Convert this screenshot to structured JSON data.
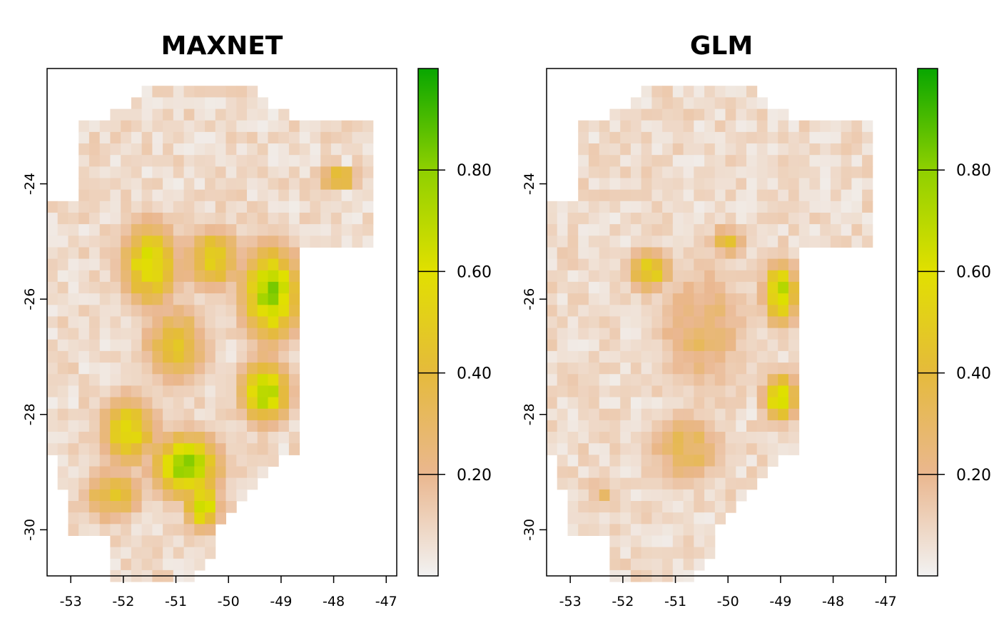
{
  "chart_data": [
    {
      "type": "heatmap",
      "title": "MAXNET",
      "xlabel": "",
      "ylabel": "",
      "xlim": [
        -53.45,
        -46.8
      ],
      "ylim": [
        -30.8,
        -26.1
      ],
      "x_ticks": [
        -53,
        -52,
        -51,
        -50,
        -49,
        -48,
        -47
      ],
      "y_ticks": [
        -24,
        -26,
        -28,
        -30
      ],
      "colorbar": {
        "range": [
          0,
          1
        ],
        "ticks": [
          0.2,
          0.4,
          0.6,
          0.8
        ],
        "tick_labels": [
          "0.20",
          "0.40",
          "0.60",
          "0.80"
        ]
      },
      "palette": [
        "#f2f2f2",
        "#eab78f",
        "#e5ba3c",
        "#e1e000",
        "#8fd000",
        "#08a600"
      ],
      "regions": [
        {
          "lon": -51.5,
          "lat": -25.4,
          "rx": 0.6,
          "ry": 0.8,
          "value": 0.62
        },
        {
          "lon": -49.2,
          "lat": -25.9,
          "rx": 0.6,
          "ry": 0.9,
          "value": 0.78
        },
        {
          "lon": -50.3,
          "lat": -25.3,
          "rx": 0.6,
          "ry": 0.6,
          "value": 0.52
        },
        {
          "lon": -49.3,
          "lat": -27.6,
          "rx": 0.5,
          "ry": 0.6,
          "value": 0.75
        },
        {
          "lon": -50.8,
          "lat": -28.9,
          "rx": 0.7,
          "ry": 0.6,
          "value": 0.78
        },
        {
          "lon": -51.9,
          "lat": -28.3,
          "rx": 0.6,
          "ry": 0.7,
          "value": 0.55
        },
        {
          "lon": -52.2,
          "lat": -29.4,
          "rx": 0.6,
          "ry": 0.5,
          "value": 0.45
        },
        {
          "lon": -50.5,
          "lat": -29.6,
          "rx": 0.35,
          "ry": 0.45,
          "value": 0.7
        },
        {
          "lon": -51.0,
          "lat": -26.8,
          "rx": 0.7,
          "ry": 0.8,
          "value": 0.42
        },
        {
          "lon": -47.9,
          "lat": -23.9,
          "rx": 0.4,
          "ry": 0.15,
          "value": 0.7
        }
      ]
    },
    {
      "type": "heatmap",
      "title": "GLM",
      "xlabel": "",
      "ylabel": "",
      "xlim": [
        -53.45,
        -46.8
      ],
      "ylim": [
        -30.8,
        -26.1
      ],
      "x_ticks": [
        -53,
        -52,
        -51,
        -50,
        -49,
        -48,
        -47
      ],
      "y_ticks": [
        -24,
        -26,
        -28,
        -30
      ],
      "colorbar": {
        "range": [
          0,
          1
        ],
        "ticks": [
          0.2,
          0.4,
          0.6,
          0.8
        ],
        "tick_labels": [
          "0.20",
          "0.40",
          "0.60",
          "0.80"
        ]
      },
      "palette": [
        "#f2f2f2",
        "#eab78f",
        "#e5ba3c",
        "#e1e000",
        "#8fd000",
        "#08a600"
      ],
      "regions": [
        {
          "lon": -51.5,
          "lat": -25.5,
          "rx": 0.45,
          "ry": 0.4,
          "value": 0.55
        },
        {
          "lon": -49.0,
          "lat": -25.9,
          "rx": 0.35,
          "ry": 0.6,
          "value": 0.72
        },
        {
          "lon": -49.0,
          "lat": -27.7,
          "rx": 0.35,
          "ry": 0.45,
          "value": 0.7
        },
        {
          "lon": -50.5,
          "lat": -26.5,
          "rx": 1.0,
          "ry": 1.3,
          "value": 0.28
        },
        {
          "lon": -50.8,
          "lat": -28.6,
          "rx": 0.8,
          "ry": 0.7,
          "value": 0.33
        },
        {
          "lon": -52.4,
          "lat": -29.4,
          "rx": 0.4,
          "ry": 0.3,
          "value": 0.25
        },
        {
          "lon": -50.0,
          "lat": -25.0,
          "rx": 0.4,
          "ry": 0.3,
          "value": 0.38
        }
      ]
    }
  ]
}
